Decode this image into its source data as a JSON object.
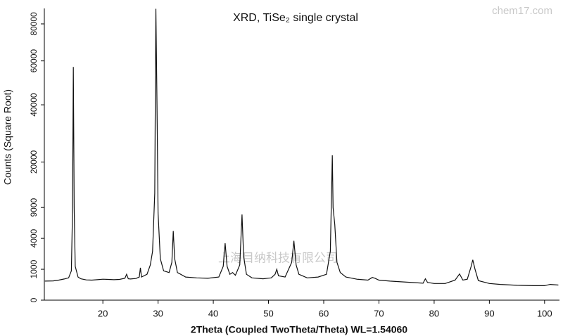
{
  "chart_data": {
    "type": "line",
    "title": "XRD, TiSe₂ single crystal",
    "x_label": "2Theta (Coupled TwoTheta/Theta) WL=1.54060",
    "y_label": "Counts (Square Root)",
    "y_scale": "sqrt",
    "xlim": [
      9.4,
      102.7
    ],
    "ylim": [
      0,
      89200
    ],
    "xticks": [
      20,
      30,
      40,
      50,
      60,
      70,
      80,
      90,
      100
    ],
    "yticks": [
      0,
      1000,
      4000,
      9000,
      20000,
      40000,
      60000,
      80000
    ],
    "watermarks": [
      "chem17.com",
      "上海目纳科技有限公司"
    ],
    "series": [
      {
        "name": "TiSe2",
        "color": "#111111",
        "x": [
          9.5,
          11,
          12,
          13,
          13.8,
          14.3,
          14.5,
          14.65,
          14.8,
          15,
          15.5,
          16,
          17,
          18,
          19,
          20,
          21,
          22,
          23,
          24,
          24.3,
          24.6,
          25,
          26,
          26.6,
          26.8,
          27,
          28,
          28.6,
          29,
          29.4,
          29.6,
          29.8,
          30,
          30.4,
          31,
          32,
          32.5,
          32.75,
          33,
          33.5,
          35,
          37,
          39,
          41,
          41.8,
          42.15,
          42.5,
          43,
          43.5,
          44,
          44.8,
          45.2,
          45.5,
          46,
          47,
          49,
          50.5,
          51.2,
          51.5,
          51.8,
          53,
          54.2,
          54.6,
          55,
          55.5,
          57,
          59,
          60.5,
          61.2,
          61.55,
          61.7,
          62,
          62.4,
          63,
          64,
          66,
          68,
          68.8,
          69.3,
          70,
          72,
          75,
          78,
          78.4,
          78.8,
          80,
          82,
          83.8,
          84.6,
          85.2,
          86,
          86.7,
          87,
          87.4,
          88,
          90,
          92,
          95,
          98,
          100,
          101,
          102.5
        ],
        "values": [
          380,
          390,
          420,
          470,
          520,
          900,
          8000,
          57000,
          9000,
          1200,
          560,
          480,
          430,
          420,
          440,
          460,
          450,
          440,
          450,
          500,
          700,
          480,
          470,
          490,
          560,
          1100,
          560,
          700,
          1300,
          2500,
          12000,
          89000,
          40000,
          8000,
          1800,
          900,
          800,
          1500,
          5000,
          1800,
          800,
          560,
          520,
          500,
          560,
          1200,
          3400,
          1200,
          700,
          800,
          650,
          1300,
          7700,
          2000,
          700,
          520,
          480,
          520,
          700,
          1000,
          620,
          560,
          1500,
          3700,
          1300,
          700,
          520,
          560,
          700,
          2500,
          22000,
          9000,
          6000,
          1500,
          800,
          560,
          460,
          420,
          540,
          500,
          420,
          380,
          340,
          300,
          480,
          330,
          290,
          290,
          420,
          720,
          420,
          460,
          1200,
          1700,
          1000,
          400,
          290,
          260,
          230,
          220,
          220,
          260,
          240
        ]
      }
    ]
  }
}
